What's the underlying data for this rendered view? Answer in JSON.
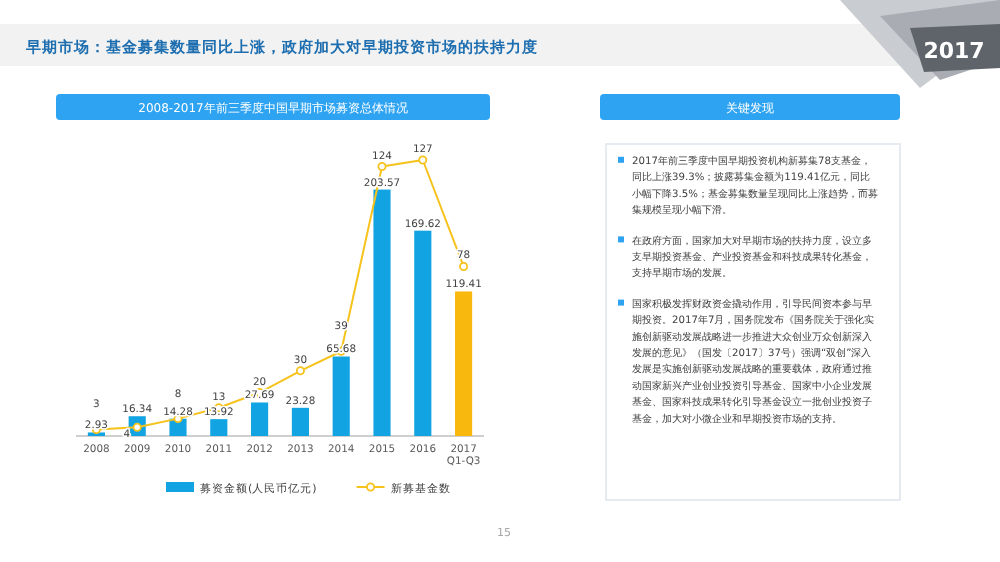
{
  "chart_data": [
    {
      "type": "bar",
      "title": "早期市场：基金募集数量同比上涨，政府加大对早期投资市场的扶持力度",
      "subtitle": "2008-2017年前三季度中国早期市场募资总体情况",
      "categories": [
        "2008",
        "2009",
        "2010",
        "2011",
        "2012",
        "2013",
        "2014",
        "2015",
        "2016",
        "2017\nQ1-Q3"
      ],
      "series": [
        {
          "name": "募资金额(人民币亿元)",
          "color": "#12a4e2",
          "colors": [
            "#12a4e2",
            "#12a4e2",
            "#12a4e2",
            "#12a4e2",
            "#12a4e2",
            "#12a4e2",
            "#12a4e2",
            "#12a4e2",
            "#12a4e2",
            "#f8b80e"
          ],
          "values": [
            2.93,
            16.34,
            14.28,
            13.92,
            27.69,
            23.28,
            65.68,
            203.57,
            169.62,
            119.41
          ]
        },
        {
          "name": "新募基金数",
          "type": "line",
          "axis": "y2",
          "color": "#f6c21c",
          "marker": "circle",
          "values": [
            3,
            4,
            8,
            13,
            20,
            30,
            39,
            124,
            127,
            78
          ]
        }
      ],
      "data_labels": true,
      "legend": "bottom",
      "annotations": [
        "2017",
        "15"
      ]
    },
    {
      "type": "other",
      "title": "关键发现",
      "annotations": [
        "2017年前三季度中国早期投资机构新募集78支基金，同比上涨39.3%；披露募集金额为119.41亿元，同比小幅下降3.5%；基金募集数量呈现同比上涨趋势，而募集规模呈现小幅下滑。",
        "在政府方面，国家加大对早期市场的扶持力度，设立多支早期投资基金、产业投资基金和科技成果转化基金，支持早期市场的发展。",
        "国家积极发挥财政资金撬动作用，引导民间资本参与早期投资。2017年7月，国务院发布《国务院关于强化实施创新驱动发展战略进一步推进大众创业万众创新深入发展的意见》（国发〔2017〕37号）强调“双创”深入发展是实施创新驱动发展战略的重要载体，政府通过推动国家新兴产业创业投资引导基金、国家中小企业发展基金、国家科技成果转化引导基金设立一批创业投资子基金，加大对小微企业和早期投资市场的支持。"
      ]
    }
  ]
}
